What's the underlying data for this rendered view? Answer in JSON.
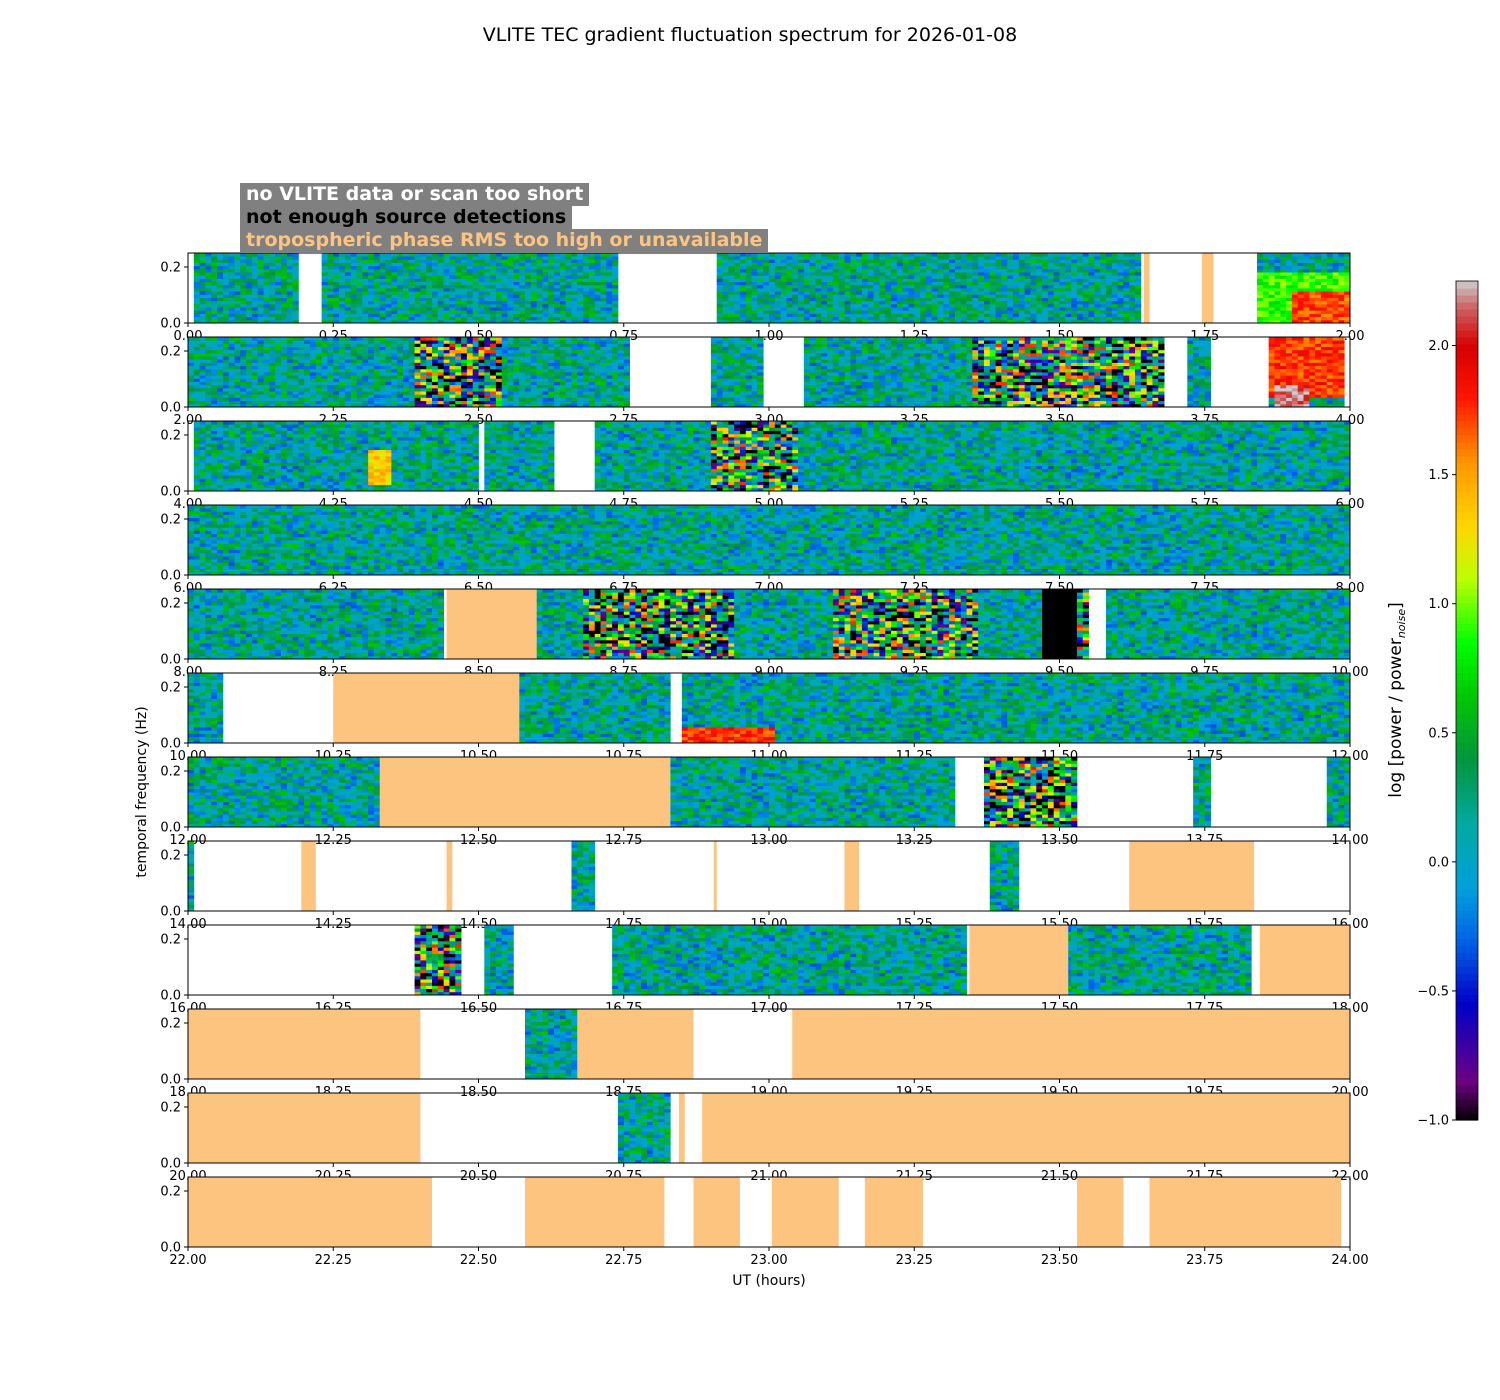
{
  "chart_data": {
    "type": "heatmap",
    "title": "VLITE TEC gradient fluctuation spectrum for 2026-01-08",
    "xlabel": "UT (hours)",
    "ylabel": "temporal frequency (Hz)",
    "colorbar_label": "log [power / power",
    "colorbar_label_sub": "noise",
    "colorbar_label_end": "]",
    "colorbar_range": [
      -1.0,
      2.25
    ],
    "colorbar_ticks": [
      "−1.0",
      "−0.5",
      "0.0",
      "0.5",
      "1.0",
      "1.5",
      "2.0"
    ],
    "colorbar_tick_values": [
      -1.0,
      -0.5,
      0.0,
      0.5,
      1.0,
      1.5,
      2.0
    ],
    "y_range": [
      0.0,
      0.25
    ],
    "y_ticks": [
      "0.0",
      "0.2"
    ],
    "y_tick_values": [
      0.0,
      0.2
    ],
    "legend": [
      {
        "label": "no VLITE data or scan too short",
        "color": "#ffffff"
      },
      {
        "label": "not enough source detections",
        "color": "#000000"
      },
      {
        "label": "tropospheric phase RMS too high or unavailable",
        "color": "#fdc47f"
      }
    ],
    "flag_color": "#fdc47f",
    "panels": [
      {
        "start": 0,
        "end": 2,
        "ticks": [
          "0.00",
          "0.25",
          "0.50",
          "0.75",
          "1.00",
          "1.25",
          "1.50",
          "1.75",
          "2.00"
        ],
        "gaps": [
          [
            0.0,
            0.015
          ],
          [
            0.188,
            0.232
          ],
          [
            0.745,
            0.913
          ],
          [
            1.645,
            1.745
          ],
          [
            1.765,
            1.84
          ]
        ],
        "flags": [
          [
            1.645,
            1.655
          ],
          [
            1.745,
            1.765
          ]
        ],
        "black": [],
        "hot": [
          {
            "range": [
              1.9,
              2.0
            ],
            "lo": 0,
            "hi": 0.45,
            "level": 1.7
          },
          {
            "range": [
              1.83,
              2.0
            ],
            "lo": 0,
            "hi": 0.75,
            "level": 0.9
          }
        ],
        "busy": []
      },
      {
        "start": 2,
        "end": 4,
        "ticks": [
          "2.00",
          "2.25",
          "2.50",
          "2.75",
          "3.00",
          "3.25",
          "3.50",
          "3.75",
          "4.00"
        ],
        "gaps": [
          [
            2.765,
            2.905
          ],
          [
            2.995,
            3.055
          ],
          [
            3.685,
            3.72
          ],
          [
            3.76,
            3.865
          ],
          [
            3.995,
            4.0
          ]
        ],
        "flags": [],
        "black": [],
        "hot": [
          {
            "range": [
              3.865,
              3.995
            ],
            "lo": 0.1,
            "hi": 1.0,
            "level": 1.75
          },
          {
            "range": [
              3.87,
              3.93
            ],
            "lo": 0,
            "hi": 0.3,
            "level": 2.2
          }
        ],
        "busy": [
          [
            2.39,
            2.54
          ],
          [
            3.35,
            3.68
          ]
        ]
      },
      {
        "start": 4,
        "end": 6,
        "ticks": [
          "4.00",
          "4.25",
          "4.50",
          "4.75",
          "5.00",
          "5.25",
          "5.50",
          "5.75",
          "6.00"
        ],
        "gaps": [
          [
            4.0,
            4.008
          ],
          [
            4.5,
            4.515
          ],
          [
            4.63,
            4.7
          ]
        ],
        "flags": [],
        "black": [],
        "hot": [
          {
            "range": [
              4.31,
              4.35
            ],
            "lo": 0.05,
            "hi": 0.6,
            "level": 1.35
          }
        ],
        "busy": [
          [
            4.9,
            5.05
          ]
        ]
      },
      {
        "start": 6,
        "end": 8,
        "ticks": [
          "6.00",
          "6.25",
          "6.50",
          "6.75",
          "7.00",
          "7.25",
          "7.50",
          "7.75",
          "8.00"
        ],
        "gaps": [],
        "flags": [],
        "black": [],
        "hot": [],
        "busy": []
      },
      {
        "start": 8,
        "end": 10,
        "ticks": [
          "8.00",
          "8.25",
          "8.50",
          "8.75",
          "9.00",
          "9.25",
          "9.50",
          "9.75",
          "10.00"
        ],
        "gaps": [
          [
            9.555,
            9.58
          ]
        ],
        "flags": [
          [
            8.445,
            8.6
          ]
        ],
        "black": [
          [
            9.47,
            9.53
          ]
        ],
        "hot": [],
        "busy": [
          [
            8.68,
            8.94
          ],
          [
            9.11,
            9.36
          ],
          [
            9.53,
            9.555
          ]
        ]
      },
      {
        "start": 10,
        "end": 12,
        "ticks": [
          "10.00",
          "10.25",
          "10.50",
          "10.75",
          "11.00",
          "11.25",
          "11.50",
          "11.75",
          "12.00"
        ],
        "gaps": [
          [
            10.062,
            10.25
          ],
          [
            10.83,
            10.855
          ]
        ],
        "flags": [
          [
            10.25,
            10.57
          ]
        ],
        "black": [],
        "hot": [
          {
            "range": [
              10.855,
              11.01
            ],
            "lo": 0,
            "hi": 0.22,
            "level": 1.75
          }
        ],
        "busy": []
      },
      {
        "start": 12,
        "end": 14,
        "ticks": [
          "12.00",
          "12.25",
          "12.50",
          "12.75",
          "13.00",
          "13.25",
          "13.50",
          "13.75",
          "14.00"
        ],
        "gaps": [
          [
            13.325,
            13.37
          ],
          [
            13.535,
            13.73
          ],
          [
            13.765,
            13.965
          ]
        ],
        "flags": [
          [
            12.33,
            12.83
          ]
        ],
        "black": [],
        "hot": [],
        "busy": [
          [
            13.37,
            13.54
          ]
        ]
      },
      {
        "start": 14,
        "end": 16,
        "ticks": [
          "14.00",
          "14.25",
          "14.50",
          "14.75",
          "15.00",
          "15.25",
          "15.50",
          "15.75",
          "16.00"
        ],
        "gaps": [
          [
            14.008,
            14.66
          ],
          [
            14.705,
            15.385
          ],
          [
            15.435,
            16.0
          ]
        ],
        "flags": [
          [
            14.195,
            14.22
          ],
          [
            14.445,
            14.455
          ],
          [
            14.905,
            14.91
          ],
          [
            15.13,
            15.155
          ],
          [
            15.62,
            15.835
          ]
        ],
        "black": [],
        "hot": [],
        "busy": []
      },
      {
        "start": 16,
        "end": 18,
        "ticks": [
          "16.00",
          "16.25",
          "16.50",
          "16.75",
          "17.00",
          "17.25",
          "17.50",
          "17.75",
          "18.00"
        ],
        "gaps": [
          [
            16.0,
            16.39
          ],
          [
            16.47,
            16.515
          ],
          [
            16.565,
            16.73
          ],
          [
            17.835,
            17.845
          ]
        ],
        "flags": [
          [
            17.345,
            17.515
          ],
          [
            17.845,
            18.0
          ]
        ],
        "black": [],
        "hot": [],
        "busy": [
          [
            16.39,
            16.47
          ]
        ]
      },
      {
        "start": 18,
        "end": 20,
        "ticks": [
          "18.00",
          "18.25",
          "18.50",
          "18.75",
          "19.00",
          "19.25",
          "19.50",
          "19.75",
          "20.00"
        ],
        "gaps": [
          [
            18.4,
            18.58
          ],
          [
            18.87,
            19.04
          ]
        ],
        "flags": [
          [
            18.0,
            18.4
          ],
          [
            18.67,
            18.87
          ],
          [
            19.04,
            20.0
          ]
        ],
        "black": [],
        "hot": [],
        "busy": []
      },
      {
        "start": 20,
        "end": 22,
        "ticks": [
          "20.00",
          "20.25",
          "20.50",
          "20.75",
          "21.00",
          "21.25",
          "21.50",
          "21.75",
          "22.00"
        ],
        "gaps": [
          [
            20.4,
            20.745
          ],
          [
            20.835,
            20.845
          ],
          [
            20.855,
            20.885
          ]
        ],
        "flags": [
          [
            20.0,
            20.4
          ],
          [
            20.845,
            20.855
          ],
          [
            20.885,
            22.0
          ]
        ],
        "black": [],
        "hot": [],
        "busy": []
      },
      {
        "start": 22,
        "end": 24,
        "ticks": [
          "22.00",
          "22.25",
          "22.50",
          "22.75",
          "23.00",
          "23.25",
          "23.50",
          "23.75",
          "24.00"
        ],
        "gaps": [
          [
            22.0,
            24.0
          ]
        ],
        "flags": [
          [
            22.0,
            22.42
          ],
          [
            22.58,
            22.82
          ],
          [
            22.87,
            22.95
          ],
          [
            23.005,
            23.12
          ],
          [
            23.165,
            23.265
          ],
          [
            23.53,
            23.61
          ],
          [
            23.655,
            23.985
          ]
        ],
        "black": [],
        "hot": [],
        "busy": []
      }
    ]
  }
}
